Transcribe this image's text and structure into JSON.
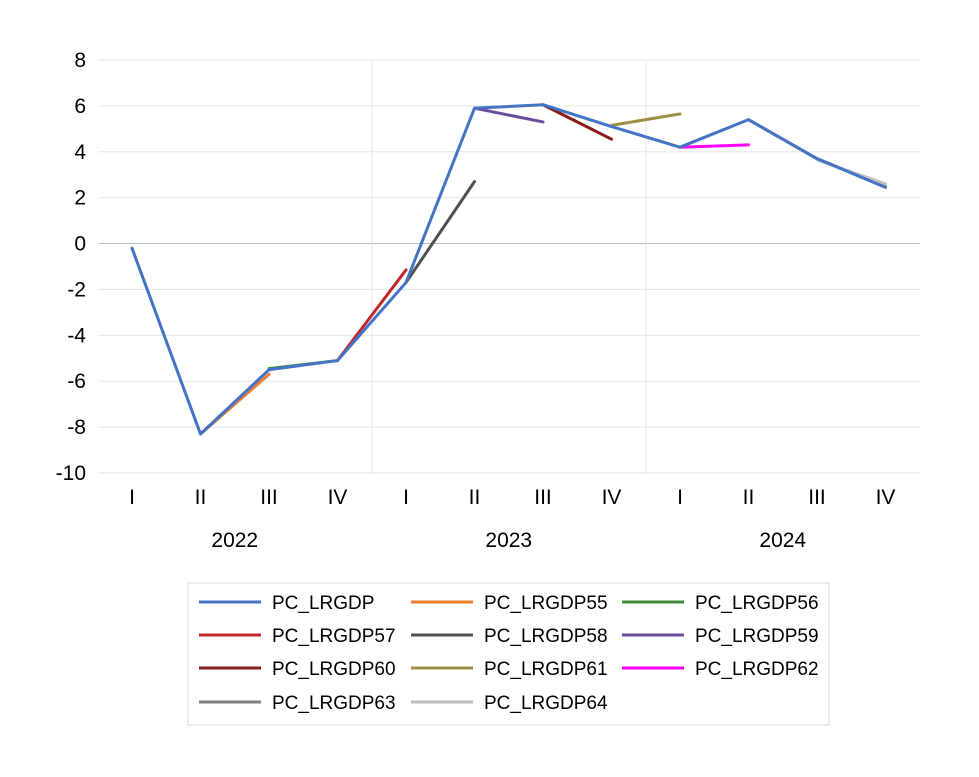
{
  "chart_data": {
    "type": "line",
    "title": "",
    "xlabel": "",
    "ylabel": "",
    "ylim": [
      -10,
      8
    ],
    "y_ticks": [
      "8",
      "6",
      "4",
      "2",
      "0",
      "-2",
      "-4",
      "-6",
      "-8",
      "-10"
    ],
    "categories": [
      "I",
      "II",
      "III",
      "IV",
      "I",
      "II",
      "III",
      "IV",
      "I",
      "II",
      "III",
      "IV"
    ],
    "years": [
      "2022",
      "2023",
      "2024"
    ],
    "grid": true,
    "legend_position": "bottom",
    "series": [
      {
        "name": "PC_LRGDP",
        "color": "#4472C4",
        "values": [
          -0.2,
          -8.3,
          -5.5,
          -5.1,
          -1.7,
          5.9,
          6.05,
          5.1,
          4.2,
          5.4,
          3.7,
          2.45
        ]
      },
      {
        "name": "PC_LRGDP55",
        "color": "#ED7D31",
        "values": [
          null,
          -8.3,
          -5.7,
          null,
          null,
          null,
          null,
          null,
          null,
          null,
          null,
          null
        ]
      },
      {
        "name": "PC_LRGDP56",
        "color": "#3C8C3C",
        "values": [
          null,
          null,
          -5.45,
          -5.1,
          null,
          null,
          null,
          null,
          null,
          null,
          null,
          null
        ]
      },
      {
        "name": "PC_LRGDP57",
        "color": "#C0282D",
        "values": [
          null,
          null,
          null,
          -5.1,
          -1.15,
          null,
          null,
          null,
          null,
          null,
          null,
          null
        ]
      },
      {
        "name": "PC_LRGDP58",
        "color": "#505050",
        "values": [
          null,
          null,
          null,
          null,
          -1.7,
          2.7,
          null,
          null,
          null,
          null,
          null,
          null
        ]
      },
      {
        "name": "PC_LRGDP59",
        "color": "#6B4C9A",
        "values": [
          null,
          null,
          null,
          null,
          null,
          5.9,
          5.3,
          null,
          null,
          null,
          null,
          null
        ]
      },
      {
        "name": "PC_LRGDP60",
        "color": "#8B1A1A",
        "values": [
          null,
          null,
          null,
          null,
          null,
          null,
          6.05,
          4.55,
          null,
          null,
          null,
          null
        ]
      },
      {
        "name": "PC_LRGDP61",
        "color": "#9A8F45",
        "values": [
          null,
          null,
          null,
          null,
          null,
          null,
          null,
          5.15,
          5.65,
          null,
          null,
          null
        ]
      },
      {
        "name": "PC_LRGDP62",
        "color": "#FF00FF",
        "values": [
          null,
          null,
          null,
          null,
          null,
          null,
          null,
          null,
          4.2,
          4.3,
          null,
          null
        ]
      },
      {
        "name": "PC_LRGDP63",
        "color": "#7F7F7F",
        "values": [
          null,
          null,
          null,
          null,
          null,
          null,
          null,
          null,
          null,
          5.4,
          3.7,
          2.5
        ]
      },
      {
        "name": "PC_LRGDP64",
        "color": "#BFBFBF",
        "values": [
          null,
          null,
          null,
          null,
          null,
          null,
          null,
          null,
          null,
          null,
          3.65,
          2.6
        ]
      }
    ]
  }
}
